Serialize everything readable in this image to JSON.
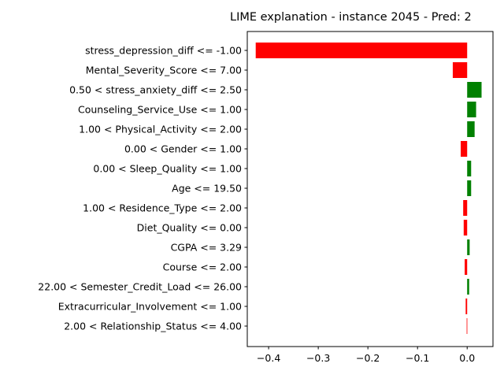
{
  "chart_data": {
    "type": "bar",
    "orientation": "horizontal",
    "title": "LIME explanation - instance 2045 - Pred: 2",
    "categories": [
      "stress_depression_diff <= -1.00",
      "Mental_Severity_Score <= 7.00",
      "0.50 < stress_anxiety_diff <= 2.50",
      "Counseling_Service_Use <= 1.00",
      "1.00 < Physical_Activity <= 2.00",
      "0.00 < Gender <= 1.00",
      "0.00 < Sleep_Quality <= 1.00",
      "Age <= 19.50",
      "1.00 < Residence_Type <= 2.00",
      "Diet_Quality <= 0.00",
      "CGPA <= 3.29",
      "Course <= 2.00",
      "22.00 < Semester_Credit_Load <= 26.00",
      "Extracurricular_Involvement <= 1.00",
      "2.00 < Relationship_Status <= 4.00"
    ],
    "values": [
      -0.426,
      -0.029,
      0.029,
      0.018,
      0.015,
      -0.013,
      0.008,
      0.008,
      -0.008,
      -0.007,
      0.005,
      -0.005,
      0.004,
      -0.003,
      -0.001
    ],
    "xlim": [
      -0.443,
      0.052
    ],
    "xticks": [
      -0.4,
      -0.3,
      -0.2,
      -0.1,
      0.0
    ],
    "xtick_labels": [
      "−0.4",
      "−0.3",
      "−0.2",
      "−0.1",
      "0.0"
    ],
    "colors": {
      "positive": "#008000",
      "negative": "#ff0000"
    },
    "xlabel": "",
    "ylabel": "",
    "grid": false
  }
}
